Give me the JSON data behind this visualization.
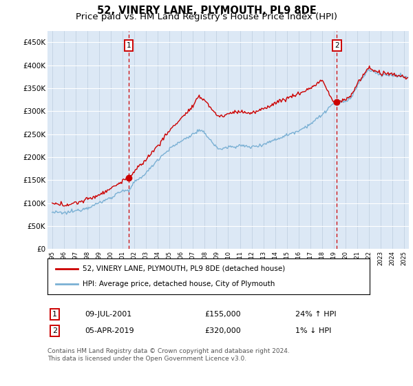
{
  "title": "52, VINERY LANE, PLYMOUTH, PL9 8DE",
  "subtitle": "Price paid vs. HM Land Registry's House Price Index (HPI)",
  "ylim": [
    0,
    475000
  ],
  "yticks": [
    0,
    50000,
    100000,
    150000,
    200000,
    250000,
    300000,
    350000,
    400000,
    450000
  ],
  "ytick_labels": [
    "£0",
    "£50K",
    "£100K",
    "£150K",
    "£200K",
    "£250K",
    "£300K",
    "£350K",
    "£400K",
    "£450K"
  ],
  "xlim": [
    1994.6,
    2025.4
  ],
  "hpi_color": "#7ab0d4",
  "price_color": "#cc0000",
  "bg_color": "#dce8f5",
  "sale1_year": 2001.52,
  "sale1_price": 155000,
  "sale2_year": 2019.26,
  "sale2_price": 320000,
  "legend_label1": "52, VINERY LANE, PLYMOUTH, PL9 8DE (detached house)",
  "legend_label2": "HPI: Average price, detached house, City of Plymouth",
  "table_row1": [
    "1",
    "09-JUL-2001",
    "£155,000",
    "24% ↑ HPI"
  ],
  "table_row2": [
    "2",
    "05-APR-2019",
    "£320,000",
    "1% ↓ HPI"
  ],
  "footer": "Contains HM Land Registry data © Crown copyright and database right 2024.\nThis data is licensed under the Open Government Licence v3.0.",
  "title_fontsize": 10.5,
  "subtitle_fontsize": 9.5
}
